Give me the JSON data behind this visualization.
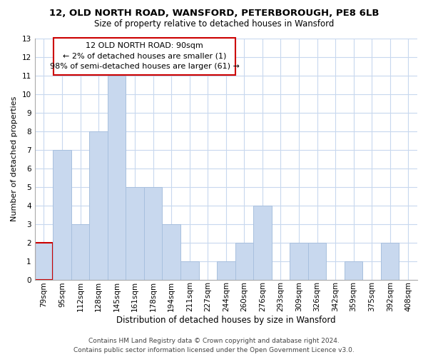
{
  "title": "12, OLD NORTH ROAD, WANSFORD, PETERBOROUGH, PE8 6LB",
  "subtitle": "Size of property relative to detached houses in Wansford",
  "xlabel": "Distribution of detached houses by size in Wansford",
  "ylabel": "Number of detached properties",
  "categories": [
    "79sqm",
    "95sqm",
    "112sqm",
    "128sqm",
    "145sqm",
    "161sqm",
    "178sqm",
    "194sqm",
    "211sqm",
    "227sqm",
    "244sqm",
    "260sqm",
    "276sqm",
    "293sqm",
    "309sqm",
    "326sqm",
    "342sqm",
    "359sqm",
    "375sqm",
    "392sqm",
    "408sqm"
  ],
  "values": [
    2,
    7,
    3,
    8,
    11,
    5,
    5,
    3,
    1,
    0,
    1,
    2,
    4,
    0,
    2,
    2,
    0,
    1,
    0,
    2,
    0
  ],
  "bar_color": "#c8d8ee",
  "bar_edge_color": "#a8c0de",
  "highlight_bar_index": 0,
  "highlight_bar_edge_color": "#cc0000",
  "annotation_line1": "12 OLD NORTH ROAD: 90sqm",
  "annotation_line2": "← 2% of detached houses are smaller (1)",
  "annotation_line3": "98% of semi-detached houses are larger (61) →",
  "annotation_box_edge_color": "#cc0000",
  "annotation_box_face_color": "#ffffff",
  "ylim": [
    0,
    13
  ],
  "yticks": [
    0,
    1,
    2,
    3,
    4,
    5,
    6,
    7,
    8,
    9,
    10,
    11,
    12,
    13
  ],
  "grid_color": "#c8d8ee",
  "background_color": "#ffffff",
  "footer_line1": "Contains HM Land Registry data © Crown copyright and database right 2024.",
  "footer_line2": "Contains public sector information licensed under the Open Government Licence v3.0.",
  "title_fontsize": 9.5,
  "subtitle_fontsize": 8.5,
  "xlabel_fontsize": 8.5,
  "ylabel_fontsize": 8,
  "tick_fontsize": 7.5,
  "annotation_fontsize": 8,
  "footer_fontsize": 6.5
}
